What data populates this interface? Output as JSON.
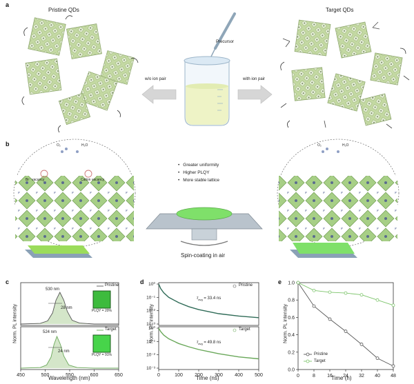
{
  "panel_labels": {
    "a": "a",
    "b": "b",
    "c": "c",
    "d": "d",
    "e": "e"
  },
  "panel_a": {
    "left_title": "Pristine QDs",
    "right_title": "Target QDs",
    "precursor_label": "Precursor",
    "left_arrow_label": "w/o ion pair",
    "right_arrow_label": "with ion pair"
  },
  "panel_b": {
    "left_labels": {
      "vacancy_br": "Br⁻ vacancy",
      "vacancy_cation": "Cation vacancy",
      "o2": "O₂",
      "h2o": "H₂O"
    },
    "right_labels": {
      "o2": "O₂",
      "h2o": "H₂O"
    },
    "bullets": [
      "Greater uniformity",
      "Higher PLQY",
      "More stable lattice"
    ],
    "spin_label": "Spin-coating in air"
  },
  "panel_c": {
    "ylabel": "Norm. PL intensity",
    "xlabel": "Wavelength (nm)",
    "xticks": [
      "450",
      "500",
      "550",
      "600",
      "650"
    ],
    "top": {
      "legend": "Pristine",
      "peak": "530 nm",
      "fwhm": "28 nm",
      "plqy": "PLQY = 20%"
    },
    "bottom": {
      "legend": "Target",
      "peak": "524 nm",
      "fwhm": "24 nm",
      "plqy": "PLQY = 91%"
    }
  },
  "panel_d": {
    "ylabel": "Norm. PL intensity",
    "xlabel": "Time (ns)",
    "xticks": [
      "0",
      "100",
      "200",
      "300",
      "400",
      "500"
    ],
    "yticks": [
      "10⁰",
      "10⁻¹",
      "10⁻²",
      "10⁻³"
    ],
    "top": {
      "legend": "Pristine",
      "tau": "τ",
      "tau_sub": "avg",
      "tau_value": " = 33.4 ns"
    },
    "bottom": {
      "legend": "Target",
      "tau": "τ",
      "tau_sub": "avg",
      "tau_value": " = 49.8 ns"
    }
  },
  "panel_e": {
    "ylabel": "Norm. PL intensity",
    "xlabel": "Time (h)",
    "xticks": [
      "0",
      "8",
      "16",
      "24",
      "32",
      "40",
      "48"
    ],
    "yticks": [
      "0.0",
      "0.2",
      "0.4",
      "0.6",
      "0.8",
      "1.0"
    ],
    "legend": [
      "Pristine",
      "Target"
    ]
  },
  "colors": {
    "qd_green": "#c4d9a3",
    "film_green": "#7fe06a",
    "pristine_line": "#555555",
    "target_line": "#7cc46a",
    "spectrum_fill": "#cfe3c3"
  },
  "chart_data": [
    {
      "type": "line",
      "xlabel": "Wavelength (nm)",
      "ylabel": "Norm. PL intensity",
      "xlim": [
        450,
        650
      ],
      "series": [
        {
          "name": "Pristine",
          "x": [
            450,
            490,
            505,
            515,
            522,
            530,
            538,
            545,
            555,
            570,
            600,
            650
          ],
          "values": [
            0,
            0.02,
            0.1,
            0.35,
            0.75,
            1.0,
            0.75,
            0.4,
            0.12,
            0.03,
            0,
            0
          ]
        },
        {
          "name": "Target",
          "x": [
            450,
            490,
            503,
            512,
            518,
            524,
            531,
            538,
            548,
            565,
            600,
            650
          ],
          "values": [
            0,
            0.02,
            0.1,
            0.35,
            0.75,
            1.0,
            0.75,
            0.38,
            0.1,
            0.02,
            0,
            0
          ]
        }
      ]
    },
    {
      "type": "line",
      "xlabel": "Time (ns)",
      "ylabel": "Norm. PL intensity",
      "xlim": [
        0,
        500
      ],
      "ylim": [
        0.001,
        1
      ],
      "yscale": "log",
      "series": [
        {
          "name": "Pristine",
          "x": [
            0,
            10,
            25,
            50,
            100,
            150,
            200,
            300,
            400,
            500
          ],
          "values": [
            1,
            0.45,
            0.22,
            0.1,
            0.04,
            0.02,
            0.012,
            0.006,
            0.004,
            0.003
          ]
        },
        {
          "name": "Target",
          "x": [
            0,
            10,
            25,
            50,
            100,
            150,
            200,
            300,
            400,
            500
          ],
          "values": [
            1,
            0.55,
            0.3,
            0.16,
            0.07,
            0.04,
            0.025,
            0.012,
            0.007,
            0.005
          ]
        }
      ]
    },
    {
      "type": "line",
      "xlabel": "Time (h)",
      "ylabel": "Norm. PL intensity",
      "xlim": [
        0,
        48
      ],
      "ylim": [
        0,
        1
      ],
      "series": [
        {
          "name": "Pristine",
          "x": [
            0,
            8,
            16,
            24,
            32,
            40,
            48
          ],
          "values": [
            1.0,
            0.73,
            0.58,
            0.44,
            0.29,
            0.13,
            0.04
          ]
        },
        {
          "name": "Target",
          "x": [
            0,
            8,
            16,
            24,
            32,
            40,
            48
          ],
          "values": [
            1.0,
            0.91,
            0.89,
            0.88,
            0.86,
            0.8,
            0.74
          ]
        }
      ]
    }
  ]
}
